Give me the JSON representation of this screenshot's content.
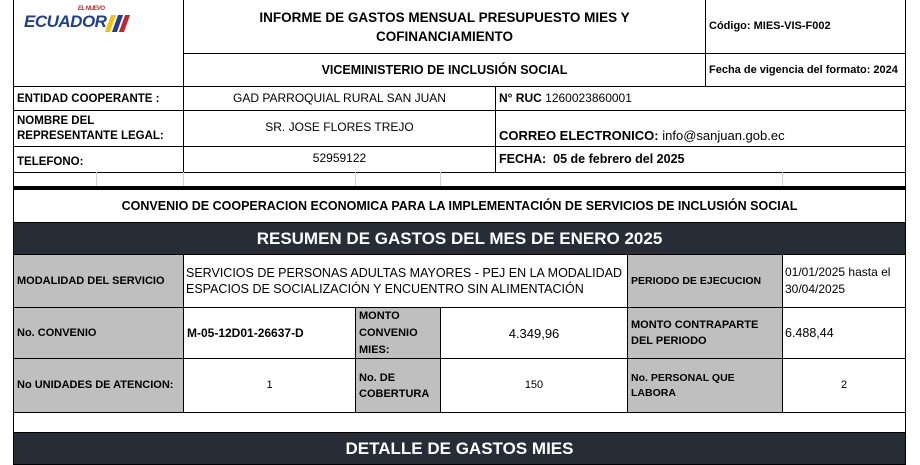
{
  "logo": {
    "text": "ECUADOR",
    "small": "EL NUEVO",
    "colors": [
      "#f4c20d",
      "#1f3f8f",
      "#c0282e"
    ]
  },
  "header": {
    "title": "INFORME DE GASTOS MENSUAL PRESUPUESTO MIES Y COFINANCIAMIENTO",
    "subtitle": "VICEMINISTERIO DE INCLUSIÓN SOCIAL",
    "code": "Código: MIES-VIS-F002",
    "validity": "Fecha de vigencia del formato: 2024"
  },
  "info": {
    "entity_label": "ENTIDAD COOPERANTE :",
    "entity_value": "GAD PARROQUIAL RURAL SAN JUAN",
    "ruc_label": "N° RUC",
    "ruc_value": "1260023860001",
    "rep_label": "NOMBRE DEL REPRESENTANTE LEGAL:",
    "rep_value": "SR. JOSE FLORES TREJO",
    "email_label": "CORREO ELECTRONICO:",
    "email_value": "info@sanjuan.gob.ec",
    "phone_label": "TELEFONO:",
    "phone_value": "52959122",
    "date_label": "FECHA:",
    "date_value": "05 de febrero del 2025"
  },
  "convenio_title": "CONVENIO DE COOPERACION ECONOMICA PARA LA IMPLEMENTACIÓN DE SERVICIOS DE INCLUSIÓN SOCIAL",
  "summary": {
    "title": "RESUMEN DE GASTOS  DEL MES DE ENERO 2025",
    "modalidad_label": "MODALIDAD DEL SERVICIO",
    "modalidad_value": "SERVICIOS DE PERSONAS ADULTAS MAYORES - PEJ EN LA MODALIDAD ESPACIOS DE SOCIALIZACIÓN Y ENCUENTRO SIN ALIMENTACIÓN",
    "periodo_label": "PERIODO DE EJECUCION",
    "periodo_value": "01/01/2025 hasta el 30/04/2025",
    "convenio_label": "No. CONVENIO",
    "convenio_value": "M-05-12D01-26637-D",
    "monto_label": "MONTO CONVENIO MIES:",
    "monto_value": "4.349,96",
    "contraparte_label": "MONTO CONTRAPARTE DEL PERIODO",
    "contraparte_value": "6.488,44",
    "unidades_label": "No UNIDADES DE ATENCION:",
    "unidades_value": "1",
    "cobertura_label": "No. DE COBERTURA",
    "cobertura_value": "150",
    "personal_label": "No. PERSONAL QUE LABORA",
    "personal_value": "2"
  },
  "detail_title": "DETALLE DE GASTOS  MIES"
}
